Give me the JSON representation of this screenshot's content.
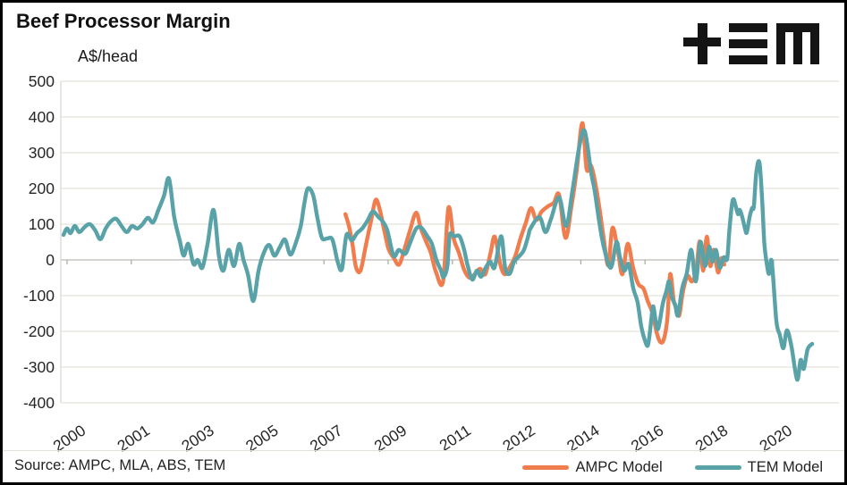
{
  "header": {
    "title": "Beef Processor Margin",
    "unit_label": "A$/head",
    "logo_name": "TEM logo (+≡M)"
  },
  "footer": {
    "source": "Source: AMPC, MLA, ABS, TEM"
  },
  "legend": {
    "items": [
      {
        "label": "AMPC Model",
        "color": "#F07D4E"
      },
      {
        "label": "TEM Model",
        "color": "#58A2A8"
      }
    ]
  },
  "chart_data": {
    "type": "line",
    "title": "Beef Processor Margin",
    "ylabel": "A$/head",
    "xlabel": "",
    "ylim": [
      -400,
      500
    ],
    "grid": "horizontal",
    "legend_position": "bottom-right",
    "y_ticks": [
      500,
      400,
      300,
      200,
      100,
      0,
      -100,
      -200,
      -300,
      -400
    ],
    "x_tick_labels": [
      "2000",
      "2001",
      "2003",
      "2005",
      "2007",
      "2009",
      "2011",
      "2012",
      "2014",
      "2016",
      "2018",
      "2020"
    ],
    "x_axis_crosses_at": 0,
    "series": [
      {
        "name": "AMPC Model",
        "color": "#F07D4E",
        "points": [
          [
            2008.02,
            128
          ],
          [
            2008.12,
            95
          ],
          [
            2008.22,
            45
          ],
          [
            2008.32,
            -20
          ],
          [
            2008.45,
            -30
          ],
          [
            2008.6,
            40
          ],
          [
            2008.75,
            110
          ],
          [
            2008.88,
            168
          ],
          [
            2009.0,
            140
          ],
          [
            2009.12,
            85
          ],
          [
            2009.25,
            30
          ],
          [
            2009.4,
            5
          ],
          [
            2009.55,
            -13
          ],
          [
            2009.7,
            30
          ],
          [
            2009.85,
            80
          ],
          [
            2010.03,
            132
          ],
          [
            2010.16,
            90
          ],
          [
            2010.3,
            55
          ],
          [
            2010.45,
            20
          ],
          [
            2010.6,
            -35
          ],
          [
            2010.8,
            -60
          ],
          [
            2010.95,
            145
          ],
          [
            2011.1,
            60
          ],
          [
            2011.25,
            20
          ],
          [
            2011.4,
            -28
          ],
          [
            2011.55,
            -50
          ],
          [
            2011.7,
            -40
          ],
          [
            2011.85,
            -25
          ],
          [
            2012.0,
            -40
          ],
          [
            2012.15,
            20
          ],
          [
            2012.27,
            65
          ],
          [
            2012.42,
            -10
          ],
          [
            2012.55,
            -40
          ],
          [
            2012.7,
            -20
          ],
          [
            2012.85,
            10
          ],
          [
            2013.0,
            60
          ],
          [
            2013.15,
            103
          ],
          [
            2013.3,
            145
          ],
          [
            2013.45,
            112
          ],
          [
            2013.6,
            135
          ],
          [
            2013.78,
            150
          ],
          [
            2013.95,
            160
          ],
          [
            2014.1,
            182
          ],
          [
            2014.28,
            62
          ],
          [
            2014.45,
            150
          ],
          [
            2014.6,
            250
          ],
          [
            2014.76,
            383
          ],
          [
            2014.88,
            255
          ],
          [
            2015.0,
            265
          ],
          [
            2015.1,
            230
          ],
          [
            2015.24,
            150
          ],
          [
            2015.37,
            60
          ],
          [
            2015.5,
            -15
          ],
          [
            2015.62,
            90
          ],
          [
            2015.78,
            20
          ],
          [
            2015.9,
            -40
          ],
          [
            2016.05,
            45
          ],
          [
            2016.2,
            -20
          ],
          [
            2016.35,
            -67
          ],
          [
            2016.5,
            -80
          ],
          [
            2016.62,
            -115
          ],
          [
            2016.75,
            -147
          ],
          [
            2016.88,
            -205
          ],
          [
            2016.98,
            -230
          ],
          [
            2017.08,
            -222
          ],
          [
            2017.18,
            -163
          ],
          [
            2017.26,
            -40
          ],
          [
            2017.36,
            -113
          ],
          [
            2017.44,
            -135
          ],
          [
            2017.52,
            -155
          ],
          [
            2017.62,
            -90
          ],
          [
            2017.75,
            -45
          ],
          [
            2017.88,
            -60
          ],
          [
            2018.0,
            -30
          ],
          [
            2018.1,
            52
          ],
          [
            2018.2,
            -30
          ],
          [
            2018.3,
            65
          ],
          [
            2018.4,
            -17
          ],
          [
            2018.5,
            28
          ],
          [
            2018.62,
            -35
          ],
          [
            2018.72,
            5
          ],
          [
            2018.8,
            -13
          ]
        ]
      },
      {
        "name": "TEM Model",
        "color": "#58A2A8",
        "points": [
          [
            2000.0,
            70
          ],
          [
            2000.1,
            88
          ],
          [
            2000.2,
            75
          ],
          [
            2000.32,
            95
          ],
          [
            2000.45,
            78
          ],
          [
            2000.6,
            92
          ],
          [
            2000.75,
            100
          ],
          [
            2000.9,
            83
          ],
          [
            2001.05,
            58
          ],
          [
            2001.2,
            88
          ],
          [
            2001.35,
            108
          ],
          [
            2001.5,
            115
          ],
          [
            2001.65,
            95
          ],
          [
            2001.8,
            78
          ],
          [
            2001.95,
            95
          ],
          [
            2002.1,
            88
          ],
          [
            2002.25,
            100
          ],
          [
            2002.4,
            118
          ],
          [
            2002.55,
            105
          ],
          [
            2002.7,
            140
          ],
          [
            2002.86,
            180
          ],
          [
            2003.0,
            228
          ],
          [
            2003.15,
            120
          ],
          [
            2003.3,
            57
          ],
          [
            2003.42,
            12
          ],
          [
            2003.55,
            45
          ],
          [
            2003.7,
            -12
          ],
          [
            2003.82,
            0
          ],
          [
            2003.95,
            -22
          ],
          [
            2004.1,
            45
          ],
          [
            2004.27,
            140
          ],
          [
            2004.42,
            12
          ],
          [
            2004.55,
            -30
          ],
          [
            2004.7,
            28
          ],
          [
            2004.85,
            -17
          ],
          [
            2005.0,
            45
          ],
          [
            2005.12,
            0
          ],
          [
            2005.25,
            -42
          ],
          [
            2005.4,
            -115
          ],
          [
            2005.55,
            -30
          ],
          [
            2005.7,
            20
          ],
          [
            2005.85,
            42
          ],
          [
            2006.0,
            12
          ],
          [
            2006.15,
            35
          ],
          [
            2006.3,
            57
          ],
          [
            2006.45,
            15
          ],
          [
            2006.6,
            45
          ],
          [
            2006.75,
            95
          ],
          [
            2006.85,
            157
          ],
          [
            2006.95,
            200
          ],
          [
            2007.1,
            182
          ],
          [
            2007.22,
            120
          ],
          [
            2007.35,
            62
          ],
          [
            2007.5,
            60
          ],
          [
            2007.65,
            57
          ],
          [
            2007.8,
            -5
          ],
          [
            2007.92,
            -25
          ],
          [
            2008.05,
            70
          ],
          [
            2008.2,
            55
          ],
          [
            2008.35,
            75
          ],
          [
            2008.5,
            88
          ],
          [
            2008.65,
            110
          ],
          [
            2008.8,
            135
          ],
          [
            2008.96,
            120
          ],
          [
            2009.08,
            108
          ],
          [
            2009.21,
            83
          ],
          [
            2009.39,
            12
          ],
          [
            2009.54,
            28
          ],
          [
            2009.72,
            17
          ],
          [
            2009.85,
            45
          ],
          [
            2010.03,
            87
          ],
          [
            2010.18,
            90
          ],
          [
            2010.36,
            65
          ],
          [
            2010.48,
            45
          ],
          [
            2010.61,
            0
          ],
          [
            2010.74,
            -30
          ],
          [
            2010.81,
            -48
          ],
          [
            2010.92,
            -17
          ],
          [
            2010.99,
            70
          ],
          [
            2011.12,
            66
          ],
          [
            2011.27,
            66
          ],
          [
            2011.4,
            28
          ],
          [
            2011.5,
            -17
          ],
          [
            2011.63,
            -55
          ],
          [
            2011.76,
            -30
          ],
          [
            2011.88,
            -47
          ],
          [
            2012.01,
            -22
          ],
          [
            2012.14,
            -5
          ],
          [
            2012.26,
            -22
          ],
          [
            2012.39,
            45
          ],
          [
            2012.47,
            62
          ],
          [
            2012.57,
            -25
          ],
          [
            2012.7,
            -38
          ],
          [
            2012.82,
            -5
          ],
          [
            2012.98,
            12
          ],
          [
            2013.1,
            28
          ],
          [
            2013.23,
            70
          ],
          [
            2013.28,
            87
          ],
          [
            2013.54,
            120
          ],
          [
            2013.71,
            78
          ],
          [
            2013.87,
            115
          ],
          [
            2014.1,
            175
          ],
          [
            2014.3,
            95
          ],
          [
            2014.48,
            195
          ],
          [
            2014.68,
            320
          ],
          [
            2014.83,
            360
          ],
          [
            2015.01,
            245
          ],
          [
            2015.11,
            195
          ],
          [
            2015.24,
            108
          ],
          [
            2015.37,
            37
          ],
          [
            2015.57,
            -22
          ],
          [
            2015.73,
            50
          ],
          [
            2015.83,
            8
          ],
          [
            2015.95,
            -30
          ],
          [
            2016.08,
            -12
          ],
          [
            2016.21,
            -80
          ],
          [
            2016.33,
            -118
          ],
          [
            2016.44,
            -188
          ],
          [
            2016.54,
            -225
          ],
          [
            2016.62,
            -240
          ],
          [
            2016.68,
            -205
          ],
          [
            2016.73,
            -160
          ],
          [
            2016.78,
            -130
          ],
          [
            2016.85,
            -172
          ],
          [
            2016.92,
            -192
          ],
          [
            2017.05,
            -122
          ],
          [
            2017.15,
            -88
          ],
          [
            2017.23,
            -60
          ],
          [
            2017.31,
            -105
          ],
          [
            2017.4,
            -125
          ],
          [
            2017.48,
            -155
          ],
          [
            2017.6,
            -80
          ],
          [
            2017.73,
            -38
          ],
          [
            2017.86,
            28
          ],
          [
            2017.99,
            -60
          ],
          [
            2018.12,
            50
          ],
          [
            2018.25,
            -17
          ],
          [
            2018.37,
            37
          ],
          [
            2018.46,
            -5
          ],
          [
            2018.56,
            28
          ],
          [
            2018.67,
            -22
          ],
          [
            2018.78,
            7
          ],
          [
            2018.88,
            3
          ],
          [
            2018.94,
            77
          ],
          [
            2019.01,
            150
          ],
          [
            2019.06,
            170
          ],
          [
            2019.12,
            152
          ],
          [
            2019.19,
            128
          ],
          [
            2019.24,
            140
          ],
          [
            2019.31,
            120
          ],
          [
            2019.39,
            87
          ],
          [
            2019.44,
            77
          ],
          [
            2019.52,
            120
          ],
          [
            2019.59,
            145
          ],
          [
            2019.64,
            150
          ],
          [
            2019.71,
            245
          ],
          [
            2019.8,
            272
          ],
          [
            2019.88,
            160
          ],
          [
            2019.94,
            45
          ],
          [
            2020.03,
            -25
          ],
          [
            2020.08,
            -38
          ],
          [
            2020.15,
            -5
          ],
          [
            2020.28,
            -170
          ],
          [
            2020.38,
            -210
          ],
          [
            2020.48,
            -247
          ],
          [
            2020.58,
            -197
          ],
          [
            2020.71,
            -242
          ],
          [
            2020.87,
            -335
          ],
          [
            2020.97,
            -280
          ],
          [
            2021.06,
            -305
          ],
          [
            2021.17,
            -250
          ],
          [
            2021.3,
            -235
          ]
        ]
      }
    ]
  }
}
